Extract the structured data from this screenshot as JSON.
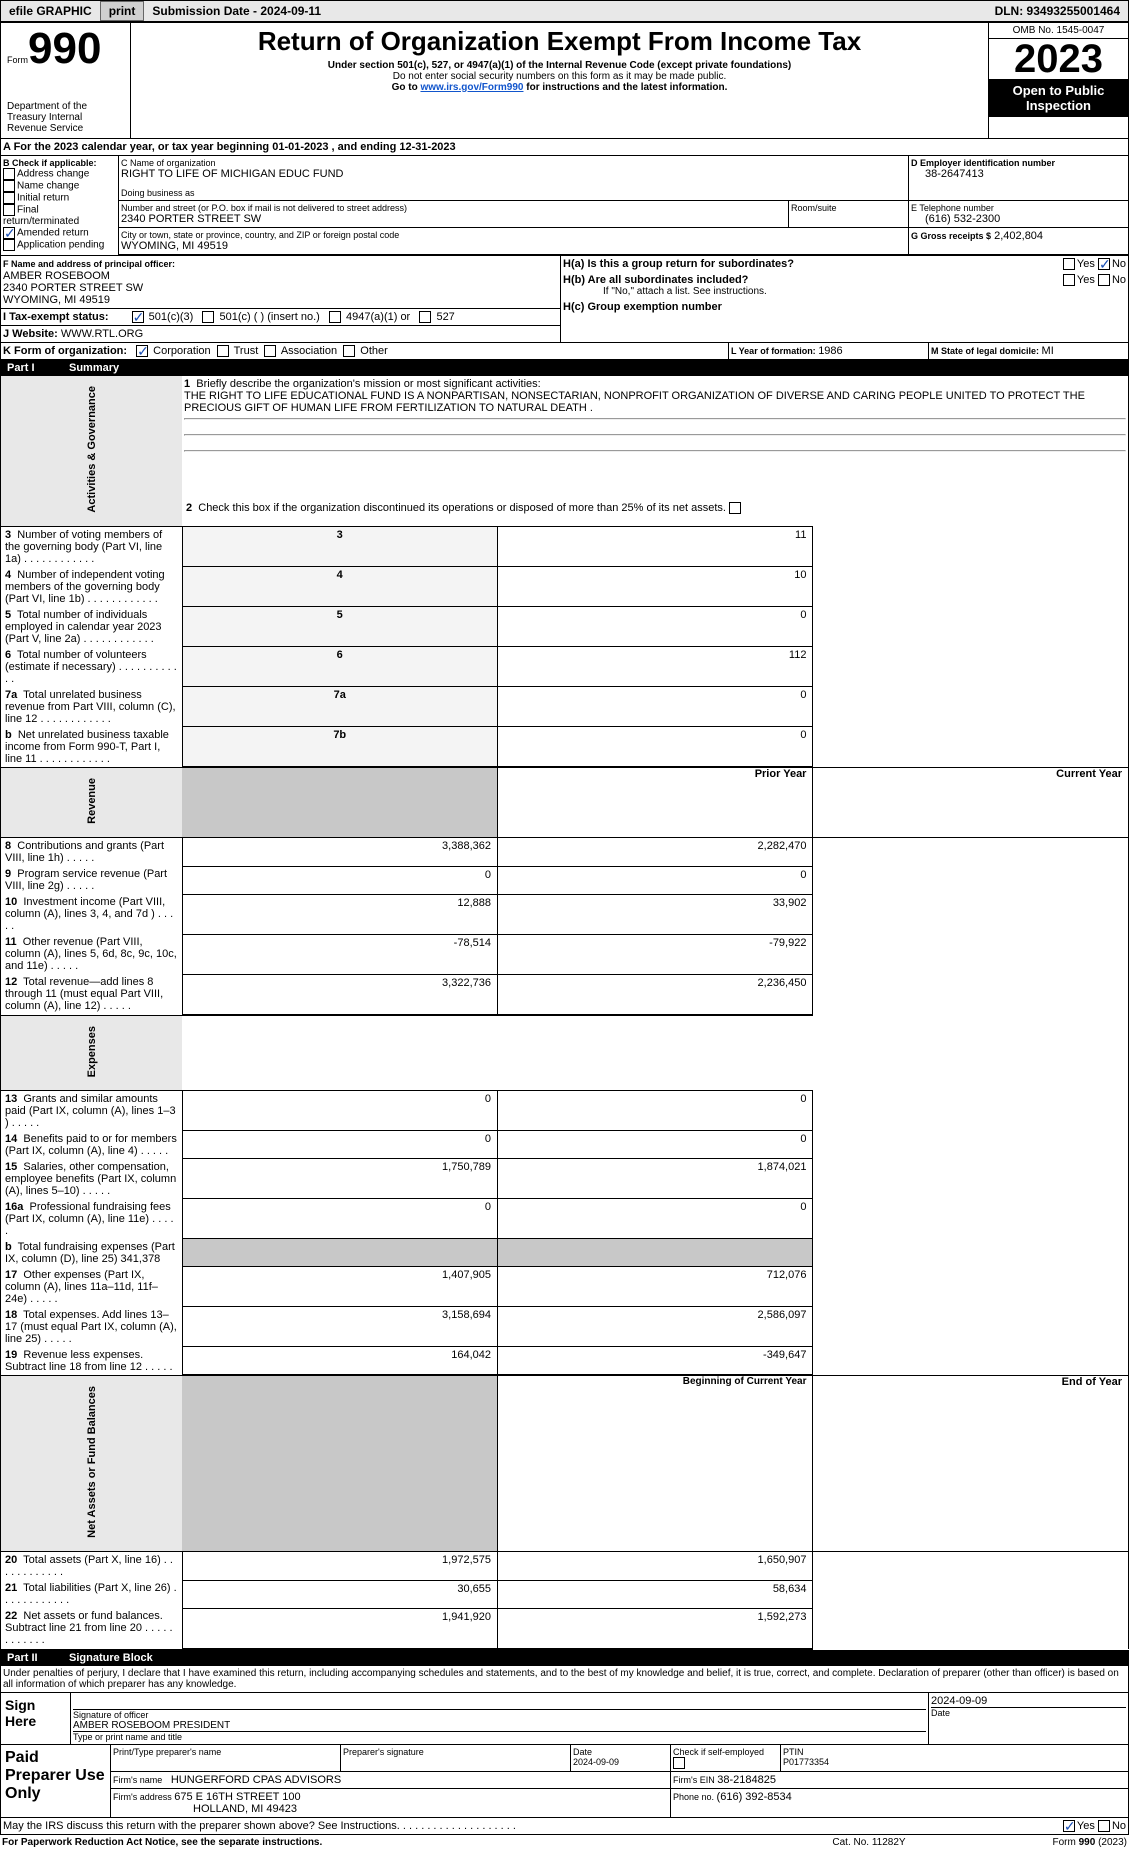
{
  "colors": {
    "black": "#000000",
    "grey_bg": "#e8e8e8",
    "grey_btn": "#d0d0d0",
    "shade": "#c8c8c8",
    "link": "#1155cc",
    "check": "#1a4fb5"
  },
  "header_bar": {
    "efile": "efile GRAPHIC",
    "print_btn": "print",
    "submission_label": "Submission Date - 2024-09-11",
    "dln": "DLN: 93493255001464"
  },
  "title_block": {
    "form_prefix": "Form",
    "form_no": "990",
    "dept": "Department of the Treasury\nInternal Revenue Service",
    "main_title": "Return of Organization Exempt From Income Tax",
    "sub1": "Under section 501(c), 527, or 4947(a)(1) of the Internal Revenue Code (except private foundations)",
    "sub2": "Do not enter social security numbers on this form as it may be made public.",
    "sub3_pre": "Go to ",
    "sub3_link": "www.irs.gov/Form990",
    "sub3_post": " for instructions and the latest information.",
    "omb": "OMB No. 1545-0047",
    "year": "2023",
    "open": "Open to Public Inspection"
  },
  "period": {
    "label_a": "A For the 2023 calendar year, or tax year beginning ",
    "begin": "01-01-2023",
    "mid": " , and ending ",
    "end": "12-31-2023"
  },
  "box_b": {
    "title": "B Check if applicable:",
    "items": [
      {
        "label": "Address change",
        "checked": false
      },
      {
        "label": "Name change",
        "checked": false
      },
      {
        "label": "Initial return",
        "checked": false
      },
      {
        "label": "Final return/terminated",
        "checked": false
      },
      {
        "label": "Amended return",
        "checked": true
      },
      {
        "label": "Application pending",
        "checked": false
      }
    ]
  },
  "box_c": {
    "name_lbl": "C Name of organization",
    "name": "RIGHT TO LIFE OF MICHIGAN EDUC FUND",
    "dba_lbl": "Doing business as",
    "dba": "",
    "addr_lbl": "Number and street (or P.O. box if mail is not delivered to street address)",
    "addr": "2340 PORTER STREET SW",
    "room_lbl": "Room/suite",
    "city_lbl": "City or town, state or province, country, and ZIP or foreign postal code",
    "city": "WYOMING, MI  49519"
  },
  "box_d": {
    "lbl": "D Employer identification number",
    "val": "38-2647413"
  },
  "box_e": {
    "lbl": "E Telephone number",
    "val": "(616) 532-2300"
  },
  "box_g": {
    "lbl": "G Gross receipts $",
    "val": "2,402,804"
  },
  "box_f": {
    "lbl": "F Name and address of principal officer:",
    "name": "AMBER ROSEBOOM",
    "addr1": "2340 PORTER STREET SW",
    "addr2": "WYOMING, MI  49519"
  },
  "box_h": {
    "a_lbl": "H(a)  Is this a group return for subordinates?",
    "a_yes": false,
    "a_no": true,
    "b_lbl": "H(b)  Are all subordinates included?",
    "b_note": "If \"No,\" attach a list. See instructions.",
    "c_lbl": "H(c)  Group exemption number "
  },
  "box_i": {
    "lbl": "I  Tax-exempt status:",
    "opts": [
      {
        "label": "501(c)(3)",
        "checked": true
      },
      {
        "label": "501(c) (  ) (insert no.)",
        "checked": false
      },
      {
        "label": "4947(a)(1) or",
        "checked": false
      },
      {
        "label": "527",
        "checked": false
      }
    ]
  },
  "box_j": {
    "lbl": "J  Website: ",
    "val": "WWW.RTL.ORG"
  },
  "box_k": {
    "lbl": "K Form of organization:",
    "opts": [
      {
        "label": "Corporation",
        "checked": true
      },
      {
        "label": "Trust",
        "checked": false
      },
      {
        "label": "Association",
        "checked": false
      },
      {
        "label": "Other",
        "checked": false
      }
    ]
  },
  "box_l": {
    "lbl": "L Year of formation: ",
    "val": "1986"
  },
  "box_m": {
    "lbl": "M State of legal domicile: ",
    "val": "MI"
  },
  "part1": {
    "hdr": "Summary",
    "q1_lbl": "Briefly describe the organization's mission or most significant activities:",
    "q1_txt": "THE RIGHT TO LIFE EDUCATIONAL FUND IS A NONPARTISAN, NONSECTARIAN, NONPROFIT ORGANIZATION OF DIVERSE AND CARING PEOPLE UNITED TO PROTECT THE PRECIOUS GIFT OF HUMAN LIFE FROM FERTILIZATION TO NATURAL DEATH .",
    "q2": "Check this box  if the organization discontinued its operations or disposed of more than 25% of its net assets.",
    "gov_rows": [
      {
        "n": "3",
        "txt": "Number of voting members of the governing body (Part VI, line 1a)",
        "box": "3",
        "val": "11"
      },
      {
        "n": "4",
        "txt": "Number of independent voting members of the governing body (Part VI, line 1b)",
        "box": "4",
        "val": "10"
      },
      {
        "n": "5",
        "txt": "Total number of individuals employed in calendar year 2023 (Part V, line 2a)",
        "box": "5",
        "val": "0"
      },
      {
        "n": "6",
        "txt": "Total number of volunteers (estimate if necessary)",
        "box": "6",
        "val": "112"
      },
      {
        "n": "7a",
        "txt": "Total unrelated business revenue from Part VIII, column (C), line 12",
        "box": "7a",
        "val": "0"
      },
      {
        "n": "b",
        "txt": "Net unrelated business taxable income from Form 990-T, Part I, line 11",
        "box": "7b",
        "val": "0"
      }
    ],
    "col_prior": "Prior Year",
    "col_current": "Current Year",
    "rev_rows": [
      {
        "n": "8",
        "txt": "Contributions and grants (Part VIII, line 1h)",
        "p": "3,388,362",
        "c": "2,282,470"
      },
      {
        "n": "9",
        "txt": "Program service revenue (Part VIII, line 2g)",
        "p": "0",
        "c": "0"
      },
      {
        "n": "10",
        "txt": "Investment income (Part VIII, column (A), lines 3, 4, and 7d )",
        "p": "12,888",
        "c": "33,902"
      },
      {
        "n": "11",
        "txt": "Other revenue (Part VIII, column (A), lines 5, 6d, 8c, 9c, 10c, and 11e)",
        "p": "-78,514",
        "c": "-79,922"
      },
      {
        "n": "12",
        "txt": "Total revenue—add lines 8 through 11 (must equal Part VIII, column (A), line 12)",
        "p": "3,322,736",
        "c": "2,236,450"
      }
    ],
    "exp_rows": [
      {
        "n": "13",
        "txt": "Grants and similar amounts paid (Part IX, column (A), lines 1–3 )",
        "p": "0",
        "c": "0"
      },
      {
        "n": "14",
        "txt": "Benefits paid to or for members (Part IX, column (A), line 4)",
        "p": "0",
        "c": "0"
      },
      {
        "n": "15",
        "txt": "Salaries, other compensation, employee benefits (Part IX, column (A), lines 5–10)",
        "p": "1,750,789",
        "c": "1,874,021"
      },
      {
        "n": "16a",
        "txt": "Professional fundraising fees (Part IX, column (A), line 11e)",
        "p": "0",
        "c": "0"
      },
      {
        "n": "b",
        "txt": "Total fundraising expenses (Part IX, column (D), line 25) 341,378",
        "p": "",
        "c": "",
        "shade": true
      },
      {
        "n": "17",
        "txt": "Other expenses (Part IX, column (A), lines 11a–11d, 11f–24e)",
        "p": "1,407,905",
        "c": "712,076"
      },
      {
        "n": "18",
        "txt": "Total expenses. Add lines 13–17 (must equal Part IX, column (A), line 25)",
        "p": "3,158,694",
        "c": "2,586,097"
      },
      {
        "n": "19",
        "txt": "Revenue less expenses. Subtract line 18 from line 12",
        "p": "164,042",
        "c": "-349,647"
      }
    ],
    "col_begin": "Beginning of Current Year",
    "col_end": "End of Year",
    "net_rows": [
      {
        "n": "20",
        "txt": "Total assets (Part X, line 16)",
        "p": "1,972,575",
        "c": "1,650,907"
      },
      {
        "n": "21",
        "txt": "Total liabilities (Part X, line 26)",
        "p": "30,655",
        "c": "58,634"
      },
      {
        "n": "22",
        "txt": "Net assets or fund balances. Subtract line 21 from line 20",
        "p": "1,941,920",
        "c": "1,592,273"
      }
    ],
    "side_gov": "Activities & Governance",
    "side_rev": "Revenue",
    "side_exp": "Expenses",
    "side_net": "Net Assets or Fund Balances"
  },
  "part2": {
    "hdr": "Signature Block",
    "decl": "Under penalties of perjury, I declare that I have examined this return, including accompanying schedules and statements, and to the best of my knowledge and belief, it is true, correct, and complete. Declaration of preparer (other than officer) is based on all information of which preparer has any knowledge.",
    "sign_here": "Sign Here",
    "sig_off_lbl": "Signature of officer",
    "sig_off_name": "AMBER ROSEBOOM PRESIDENT",
    "sig_off_type": "Type or print name and title",
    "sig_date_lbl": "Date",
    "sig_date": "2024-09-09",
    "paid": "Paid Preparer Use Only",
    "prep_name_lbl": "Print/Type preparer's name",
    "prep_sig_lbl": "Preparer's signature",
    "prep_date_lbl": "Date",
    "prep_date": "2024-09-09",
    "prep_self_lbl": "Check  if self-employed",
    "ptin_lbl": "PTIN",
    "ptin": "P01773354",
    "firm_name_lbl": "Firm's name  ",
    "firm_name": "HUNGERFORD CPAS ADVISORS",
    "firm_ein_lbl": "Firm's EIN  ",
    "firm_ein": "38-2184825",
    "firm_addr_lbl": "Firm's address ",
    "firm_addr1": "675 E 16TH STREET 100",
    "firm_addr2": "HOLLAND, MI  49423",
    "firm_phone_lbl": "Phone no. ",
    "firm_phone": "(616) 392-8534",
    "discuss": "May the IRS discuss this return with the preparer shown above? See Instructions.",
    "discuss_yes": true
  },
  "footer": {
    "pra": "For Paperwork Reduction Act Notice, see the separate instructions.",
    "cat": "Cat. No. 11282Y",
    "form": "Form 990 (2023)"
  }
}
